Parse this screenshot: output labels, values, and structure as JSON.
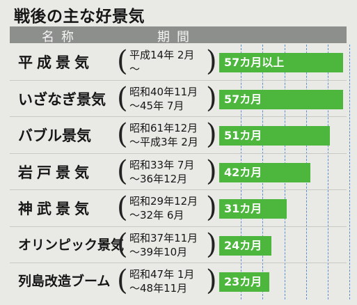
{
  "title": "戦後の主な好景気",
  "header": {
    "name_label": "名称",
    "period_label": "期間"
  },
  "chart_data": {
    "type": "bar",
    "orientation": "horizontal",
    "title": "戦後の主な好景気",
    "categories": [
      "平成景気",
      "いざなぎ景気",
      "バブル景気",
      "岩戸景気",
      "神武景気",
      "オリンピック景気",
      "列島改造ブーム"
    ],
    "periods": [
      [
        "平成14年 2月",
        "～"
      ],
      [
        "昭和40年11月",
        "～45年 7月"
      ],
      [
        "昭和61年12月",
        "～平成3年 2月"
      ],
      [
        "昭和33年 7月",
        "～36年12月"
      ],
      [
        "昭和29年12月",
        "～32年 6月"
      ],
      [
        "昭和37年11月",
        "～39年10月"
      ],
      [
        "昭和47年 1月",
        "～48年11月"
      ]
    ],
    "values": [
      57,
      57,
      51,
      42,
      31,
      24,
      23
    ],
    "data_labels": [
      "57カ月以上",
      "57カ月",
      "51カ月",
      "42カ月",
      "31カ月",
      "24カ月",
      "23カ月"
    ],
    "unit": "カ月",
    "xlim": [
      0,
      70
    ],
    "gridlines": [
      10,
      20,
      30,
      40,
      50,
      60
    ],
    "bar_color": "#4cb63d",
    "grid": true
  }
}
